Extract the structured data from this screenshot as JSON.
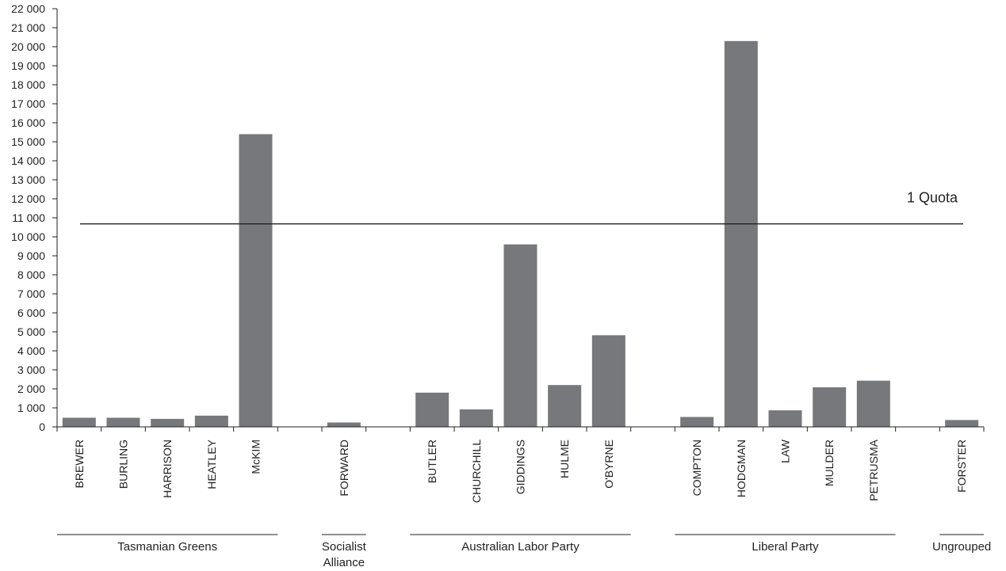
{
  "chart_data": {
    "type": "bar",
    "ylim": [
      0,
      22000
    ],
    "yticks": [
      0,
      1000,
      2000,
      3000,
      4000,
      5000,
      6000,
      7000,
      8000,
      9000,
      10000,
      11000,
      12000,
      13000,
      14000,
      15000,
      16000,
      17000,
      18000,
      19000,
      20000,
      21000,
      22000
    ],
    "ytick_labels": [
      "0",
      "1 000",
      "2 000",
      "3 000",
      "4 000",
      "5 000",
      "6 000",
      "7 000",
      "8 000",
      "9 000",
      "10 000",
      "11 000",
      "12 000",
      "13 000",
      "14 000",
      "15 000",
      "16 000",
      "17 000",
      "18 000",
      "19 000",
      "20 000",
      "21 000",
      "22 000"
    ],
    "bar_color": "#77787b",
    "categories": [
      "BREWER",
      "BURLING",
      "HARRISON",
      "HEATLEY",
      "McKIM",
      "",
      "FORWARD",
      "",
      "BUTLER",
      "CHURCHILL",
      "GIDDINGS",
      "HULME",
      "O'BYRNE",
      "",
      "COMPTON",
      "HODGMAN",
      "LAW",
      "MULDER",
      "PETRUSMA",
      "",
      "FORSTER"
    ],
    "values": [
      480,
      480,
      420,
      590,
      15400,
      null,
      230,
      null,
      1800,
      920,
      9600,
      2200,
      4820,
      null,
      520,
      20300,
      870,
      2080,
      2430,
      null,
      360
    ],
    "groups": [
      {
        "label": [
          "Tasmanian Greens"
        ],
        "start": 0,
        "end": 4
      },
      {
        "label": [
          "Socialist",
          "Alliance"
        ],
        "start": 6,
        "end": 6
      },
      {
        "label": [
          "Australian Labor Party"
        ],
        "start": 8,
        "end": 12
      },
      {
        "label": [
          "Liberal Party"
        ],
        "start": 14,
        "end": 18
      },
      {
        "label": [
          "Ungrouped"
        ],
        "start": 20,
        "end": 20
      }
    ],
    "quota": {
      "value": 10680,
      "label": "1 Quota"
    }
  }
}
